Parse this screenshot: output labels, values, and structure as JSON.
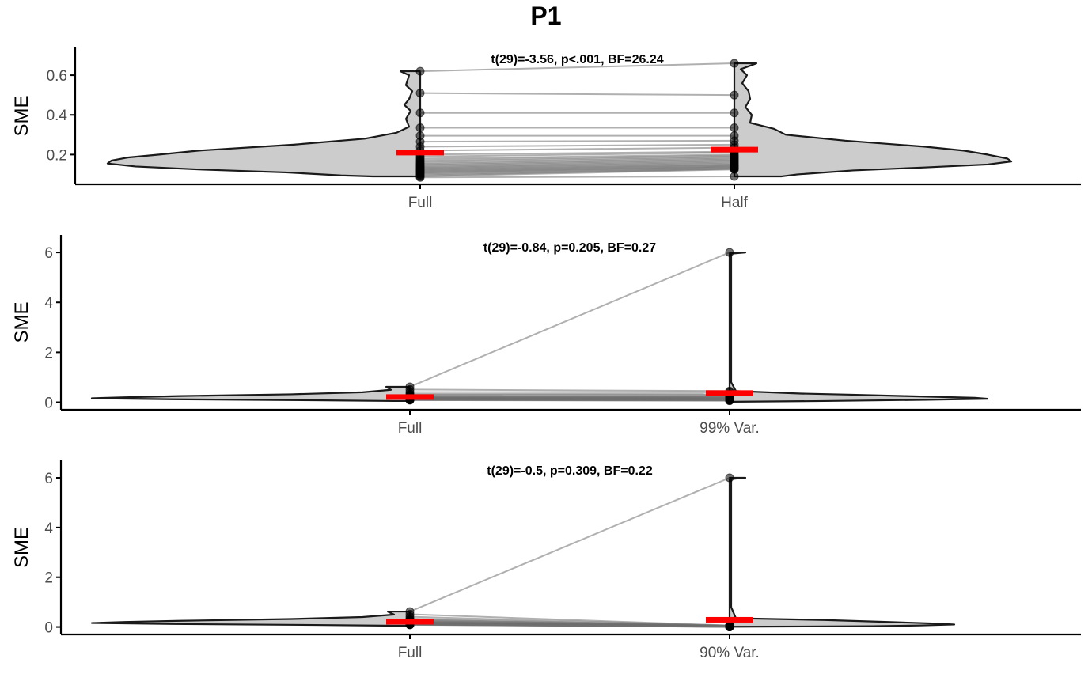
{
  "title": "P1",
  "chart_data": [
    {
      "type": "violin",
      "annotation": "t(29)=-3.56, p<.001, BF=26.24",
      "ylabel": "SME",
      "xlabel": "",
      "categories": [
        "Full",
        "Half"
      ],
      "ylim": [
        0.05,
        0.74
      ],
      "yticks": [
        0.2,
        0.4,
        0.6
      ],
      "ytick_labels": [
        "0.2",
        "0.4",
        "0.6"
      ],
      "means": [
        0.21,
        0.225
      ],
      "paired_values": [
        [
          0.62,
          0.66
        ],
        [
          0.51,
          0.5
        ],
        [
          0.41,
          0.41
        ],
        [
          0.335,
          0.335
        ],
        [
          0.295,
          0.295
        ],
        [
          0.265,
          0.27
        ],
        [
          0.24,
          0.25
        ],
        [
          0.22,
          0.235
        ],
        [
          0.2,
          0.215
        ],
        [
          0.19,
          0.21
        ],
        [
          0.18,
          0.2
        ],
        [
          0.172,
          0.195
        ],
        [
          0.165,
          0.19
        ],
        [
          0.158,
          0.185
        ],
        [
          0.152,
          0.18
        ],
        [
          0.147,
          0.175
        ],
        [
          0.142,
          0.17
        ],
        [
          0.137,
          0.165
        ],
        [
          0.133,
          0.16
        ],
        [
          0.129,
          0.155
        ],
        [
          0.125,
          0.15
        ],
        [
          0.121,
          0.147
        ],
        [
          0.117,
          0.143
        ],
        [
          0.113,
          0.14
        ],
        [
          0.109,
          0.137
        ],
        [
          0.105,
          0.134
        ],
        [
          0.1,
          0.13
        ],
        [
          0.095,
          0.128
        ],
        [
          0.09,
          0.125
        ],
        [
          0.085,
          0.09
        ]
      ]
    },
    {
      "type": "violin",
      "annotation": "t(29)=-0.84, p=0.205, BF=0.27",
      "ylabel": "SME",
      "xlabel": "",
      "categories": [
        "Full",
        "99% Var."
      ],
      "ylim": [
        -0.3,
        6.7
      ],
      "yticks": [
        0,
        2,
        4,
        6
      ],
      "ytick_labels": [
        "0",
        "2",
        "4",
        "6"
      ],
      "means": [
        0.21,
        0.37
      ],
      "paired_values": [
        [
          0.62,
          6.0
        ],
        [
          0.51,
          0.45
        ],
        [
          0.41,
          0.4
        ],
        [
          0.335,
          0.33
        ],
        [
          0.295,
          0.29
        ],
        [
          0.265,
          0.26
        ],
        [
          0.24,
          0.24
        ],
        [
          0.22,
          0.22
        ],
        [
          0.2,
          0.2
        ],
        [
          0.19,
          0.19
        ],
        [
          0.18,
          0.18
        ],
        [
          0.172,
          0.17
        ],
        [
          0.165,
          0.16
        ],
        [
          0.158,
          0.155
        ],
        [
          0.152,
          0.15
        ],
        [
          0.147,
          0.14
        ],
        [
          0.142,
          0.135
        ],
        [
          0.137,
          0.13
        ],
        [
          0.133,
          0.125
        ],
        [
          0.129,
          0.12
        ],
        [
          0.125,
          0.115
        ],
        [
          0.121,
          0.11
        ],
        [
          0.117,
          0.105
        ],
        [
          0.113,
          0.1
        ],
        [
          0.109,
          0.095
        ],
        [
          0.105,
          0.09
        ],
        [
          0.1,
          0.085
        ],
        [
          0.095,
          0.08
        ],
        [
          0.09,
          0.07
        ],
        [
          0.085,
          0.06
        ]
      ]
    },
    {
      "type": "violin",
      "annotation": "t(29)=-0.5, p=0.309, BF=0.22",
      "ylabel": "SME",
      "xlabel": "",
      "categories": [
        "Full",
        "90% Var."
      ],
      "ylim": [
        -0.3,
        6.7
      ],
      "yticks": [
        0,
        2,
        4,
        6
      ],
      "ytick_labels": [
        "0",
        "2",
        "4",
        "6"
      ],
      "means": [
        0.21,
        0.29
      ],
      "paired_values": [
        [
          0.62,
          6.0
        ],
        [
          0.51,
          0.06
        ],
        [
          0.41,
          0.055
        ],
        [
          0.335,
          0.05
        ],
        [
          0.295,
          0.048
        ],
        [
          0.265,
          0.046
        ],
        [
          0.24,
          0.044
        ],
        [
          0.22,
          0.042
        ],
        [
          0.2,
          0.04
        ],
        [
          0.19,
          0.038
        ],
        [
          0.18,
          0.036
        ],
        [
          0.172,
          0.034
        ],
        [
          0.165,
          0.032
        ],
        [
          0.158,
          0.03
        ],
        [
          0.152,
          0.028
        ],
        [
          0.147,
          0.026
        ],
        [
          0.142,
          0.024
        ],
        [
          0.137,
          0.022
        ],
        [
          0.133,
          0.02
        ],
        [
          0.129,
          0.018
        ],
        [
          0.125,
          0.016
        ],
        [
          0.121,
          0.014
        ],
        [
          0.117,
          0.012
        ],
        [
          0.113,
          0.01
        ],
        [
          0.109,
          0.008
        ],
        [
          0.105,
          0.006
        ],
        [
          0.1,
          0.005
        ],
        [
          0.095,
          0.004
        ],
        [
          0.09,
          0.003
        ],
        [
          0.085,
          0.002
        ]
      ]
    }
  ],
  "colors": {
    "violin_fill": "#cccccc",
    "violin_stroke": "#1a1a1a",
    "point": "#000000",
    "paired_line": "#b3b3b3",
    "mean_bar": "#ff0000",
    "axis": "#000000",
    "tick_label": "#4d4d4d"
  }
}
